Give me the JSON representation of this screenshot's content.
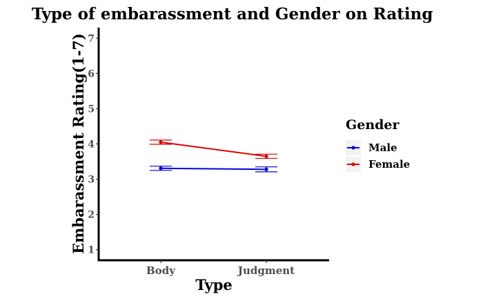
{
  "chart_data": {
    "type": "line",
    "title": "Type of embarassment and Gender on Rating",
    "xlabel": "Type",
    "ylabel": "Embarassment Rating(1-7)",
    "categories": [
      "Body",
      "Judgment"
    ],
    "ylim": [
      0.7,
      7.3
    ],
    "yticks": [
      1,
      2,
      3,
      4,
      5,
      6,
      7
    ],
    "grid": false,
    "legend": {
      "title": "Gender",
      "position": "right"
    },
    "series": [
      {
        "name": "Male",
        "color": "#0000dd",
        "values": [
          3.31,
          3.28
        ],
        "error_low": [
          3.25,
          3.21
        ],
        "error_high": [
          3.37,
          3.35
        ]
      },
      {
        "name": "Female",
        "color": "#dd0000",
        "values": [
          4.05,
          3.65
        ],
        "error_low": [
          3.99,
          3.59
        ],
        "error_high": [
          4.11,
          3.71
        ]
      }
    ]
  }
}
